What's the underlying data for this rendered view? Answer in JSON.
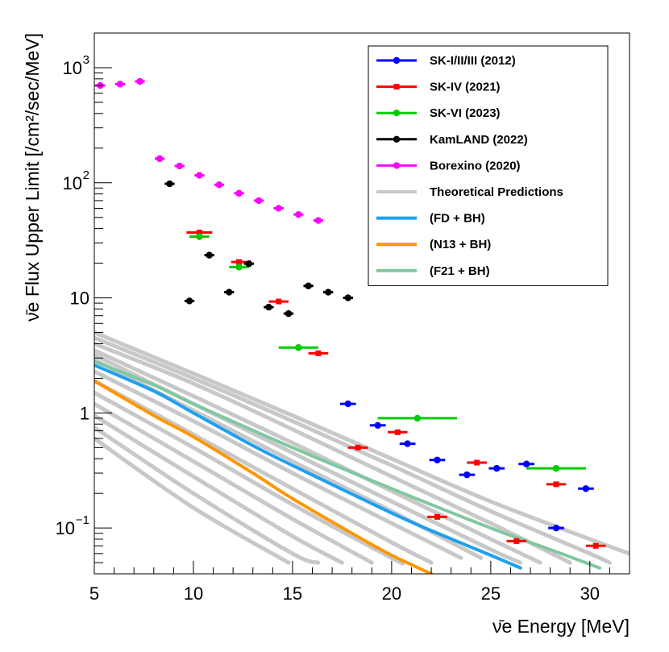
{
  "chart_data": {
    "type": "scatter",
    "xlabel": "ν̄e Energy [MeV]",
    "ylabel": "ν̄e Flux Upper Limit [/cm²/sec/MeV]",
    "xlim": [
      5,
      32
    ],
    "ylim": [
      0.04,
      2000
    ],
    "yscale": "log",
    "x_ticks": [
      {
        "v": 5,
        "label": "5"
      },
      {
        "v": 10,
        "label": "10"
      },
      {
        "v": 15,
        "label": "15"
      },
      {
        "v": 20,
        "label": "20"
      },
      {
        "v": 25,
        "label": "25"
      },
      {
        "v": 30,
        "label": "30"
      }
    ],
    "y_ticks": [
      {
        "v": 0.1,
        "base": "10",
        "exp": "−1",
        "label": ""
      },
      {
        "v": 1,
        "base": "",
        "exp": "",
        "label": "1"
      },
      {
        "v": 10,
        "base": "",
        "exp": "",
        "label": "10"
      },
      {
        "v": 100,
        "base": "10",
        "exp": "2",
        "label": ""
      },
      {
        "v": 1000,
        "base": "10",
        "exp": "3",
        "label": ""
      }
    ],
    "legend_position": "top-right",
    "colors": {
      "sk123": "#0000ff",
      "sk4": "#ff0000",
      "sk6": "#00cc00",
      "kamland": "#000000",
      "borexino": "#ff00ff",
      "theory": "#c8c8c8",
      "fd": "#1ea0f0",
      "n13": "#ff9600",
      "f21": "#80c8a0"
    },
    "series": [
      {
        "name": "SK-I/II/III (2012)",
        "color": "#0000ff",
        "marker": "circle",
        "points": [
          [
            17.8,
            1.2,
            0.8
          ],
          [
            19.3,
            0.78,
            0.8
          ],
          [
            20.8,
            0.54,
            0.8
          ],
          [
            22.3,
            0.39,
            0.8
          ],
          [
            23.8,
            0.29,
            0.8
          ],
          [
            25.3,
            0.33,
            0.8
          ],
          [
            26.8,
            0.36,
            0.8
          ],
          [
            28.3,
            0.1,
            0.8
          ],
          [
            29.8,
            0.22,
            0.8
          ]
        ]
      },
      {
        "name": "SK-IV (2021)",
        "color": "#ff0000",
        "marker": "square",
        "points": [
          [
            10.3,
            37,
            1.3
          ],
          [
            12.3,
            20.5,
            0.8
          ],
          [
            14.3,
            9.3,
            1.0
          ],
          [
            16.3,
            3.3,
            1.0
          ],
          [
            18.3,
            0.5,
            1.0
          ],
          [
            20.3,
            0.68,
            1.0
          ],
          [
            22.3,
            0.125,
            1.0
          ],
          [
            24.3,
            0.37,
            1.0
          ],
          [
            26.3,
            0.077,
            1.0
          ],
          [
            28.3,
            0.24,
            1.0
          ],
          [
            30.3,
            0.07,
            1.0
          ]
        ]
      },
      {
        "name": "SK-VI (2023)",
        "color": "#00cc00",
        "marker": "circle",
        "points": [
          [
            10.3,
            34,
            1.0
          ],
          [
            12.3,
            18.5,
            1.0
          ],
          [
            15.3,
            3.7,
            2.0
          ],
          [
            21.3,
            0.9,
            4.0
          ],
          [
            28.3,
            0.33,
            3.0
          ]
        ]
      },
      {
        "name": "KamLAND (2022)",
        "color": "#000000",
        "marker": "circle",
        "points": [
          [
            8.8,
            98,
            0.5
          ],
          [
            9.8,
            9.4,
            0.5
          ],
          [
            10.8,
            23.5,
            0.5
          ],
          [
            11.8,
            11.2,
            0.5
          ],
          [
            12.8,
            19.8,
            0.5
          ],
          [
            13.8,
            8.3,
            0.5
          ],
          [
            14.8,
            7.3,
            0.5
          ],
          [
            15.8,
            12.7,
            0.5
          ],
          [
            16.8,
            11.2,
            0.5
          ],
          [
            17.8,
            10.0,
            0.5
          ]
        ]
      },
      {
        "name": "Borexino (2020)",
        "color": "#ff00ff",
        "marker": "circle",
        "points": [
          [
            5.3,
            700,
            0.5
          ],
          [
            6.3,
            720,
            0.5
          ],
          [
            7.3,
            760,
            0.5
          ],
          [
            8.3,
            162,
            0.5
          ],
          [
            9.3,
            140,
            0.5
          ],
          [
            10.3,
            116,
            0.5
          ],
          [
            11.3,
            96,
            0.5
          ],
          [
            12.3,
            81,
            0.5
          ],
          [
            13.3,
            70,
            0.5
          ],
          [
            14.3,
            60,
            0.5
          ],
          [
            15.3,
            53,
            0.5
          ],
          [
            16.3,
            47,
            0.5
          ]
        ]
      },
      {
        "name": "Theoretical Predictions",
        "color": "#c8c8c8",
        "marker": "line",
        "curves": [
          [
            [
              5,
              5.0
            ],
            [
              10,
              2.2
            ],
            [
              15,
              0.95
            ],
            [
              20,
              0.4
            ],
            [
              25,
              0.17
            ],
            [
              30,
              0.08
            ],
            [
              32,
              0.06
            ]
          ],
          [
            [
              5,
              4.5
            ],
            [
              10,
              2.0
            ],
            [
              15,
              0.85
            ],
            [
              20,
              0.35
            ],
            [
              25,
              0.14
            ],
            [
              30,
              0.06
            ],
            [
              31,
              0.05
            ]
          ],
          [
            [
              5,
              4.0
            ],
            [
              10,
              1.8
            ],
            [
              15,
              0.72
            ],
            [
              20,
              0.28
            ],
            [
              25,
              0.11
            ],
            [
              29,
              0.05
            ]
          ],
          [
            [
              5,
              3.5
            ],
            [
              10,
              1.4
            ],
            [
              15,
              0.55
            ],
            [
              20,
              0.21
            ],
            [
              25,
              0.08
            ],
            [
              27.5,
              0.05
            ]
          ],
          [
            [
              5,
              3.2
            ],
            [
              10,
              1.2
            ],
            [
              15,
              0.45
            ],
            [
              20,
              0.17
            ],
            [
              25,
              0.065
            ],
            [
              26.5,
              0.05
            ]
          ],
          [
            [
              5,
              2.9
            ],
            [
              10,
              1.05
            ],
            [
              15,
              0.38
            ],
            [
              20,
              0.14
            ],
            [
              24.5,
              0.055
            ]
          ],
          [
            [
              5,
              2.3
            ],
            [
              10,
              0.85
            ],
            [
              15,
              0.3
            ],
            [
              20,
              0.11
            ],
            [
              23.5,
              0.055
            ]
          ],
          [
            [
              5,
              1.9
            ],
            [
              10,
              0.65
            ],
            [
              15,
              0.22
            ],
            [
              20,
              0.075
            ],
            [
              22,
              0.05
            ]
          ],
          [
            [
              5,
              1.5
            ],
            [
              10,
              0.5
            ],
            [
              15,
              0.16
            ],
            [
              20,
              0.055
            ],
            [
              20.5,
              0.05
            ]
          ],
          [
            [
              5,
              1.2
            ],
            [
              10,
              0.38
            ],
            [
              15,
              0.12
            ],
            [
              19,
              0.05
            ]
          ],
          [
            [
              5,
              0.95
            ],
            [
              10,
              0.28
            ],
            [
              15,
              0.085
            ],
            [
              17.5,
              0.05
            ]
          ],
          [
            [
              5,
              0.75
            ],
            [
              10,
              0.2
            ],
            [
              15,
              0.06
            ],
            [
              16.3,
              0.05
            ]
          ],
          [
            [
              5,
              0.6
            ],
            [
              10,
              0.15
            ],
            [
              14.8,
              0.05
            ]
          ]
        ]
      },
      {
        "name": "(FD + BH)",
        "color": "#1ea0f0",
        "marker": "line",
        "curves": [
          [
            [
              5,
              2.6
            ],
            [
              8,
              1.55
            ],
            [
              10,
              1.0
            ],
            [
              13,
              0.52
            ],
            [
              15,
              0.35
            ],
            [
              20,
              0.135
            ],
            [
              22,
              0.095
            ],
            [
              25,
              0.058
            ],
            [
              26.5,
              0.045
            ]
          ]
        ]
      },
      {
        "name": "(N13 + BH)",
        "color": "#ff9600",
        "marker": "line",
        "curves": [
          [
            [
              5,
              1.9
            ],
            [
              8,
              0.95
            ],
            [
              10,
              0.62
            ],
            [
              13,
              0.3
            ],
            [
              15,
              0.18
            ],
            [
              18,
              0.09
            ],
            [
              20,
              0.058
            ],
            [
              22,
              0.04
            ]
          ]
        ]
      },
      {
        "name": "(F21 + BH)",
        "color": "#80c8a0",
        "marker": "line",
        "curves": [
          [
            [
              5,
              2.8
            ],
            [
              8,
              1.75
            ],
            [
              10,
              1.2
            ],
            [
              15,
              0.5
            ],
            [
              20,
              0.22
            ],
            [
              25,
              0.1
            ],
            [
              28,
              0.065
            ],
            [
              30.5,
              0.045
            ]
          ]
        ]
      }
    ]
  }
}
